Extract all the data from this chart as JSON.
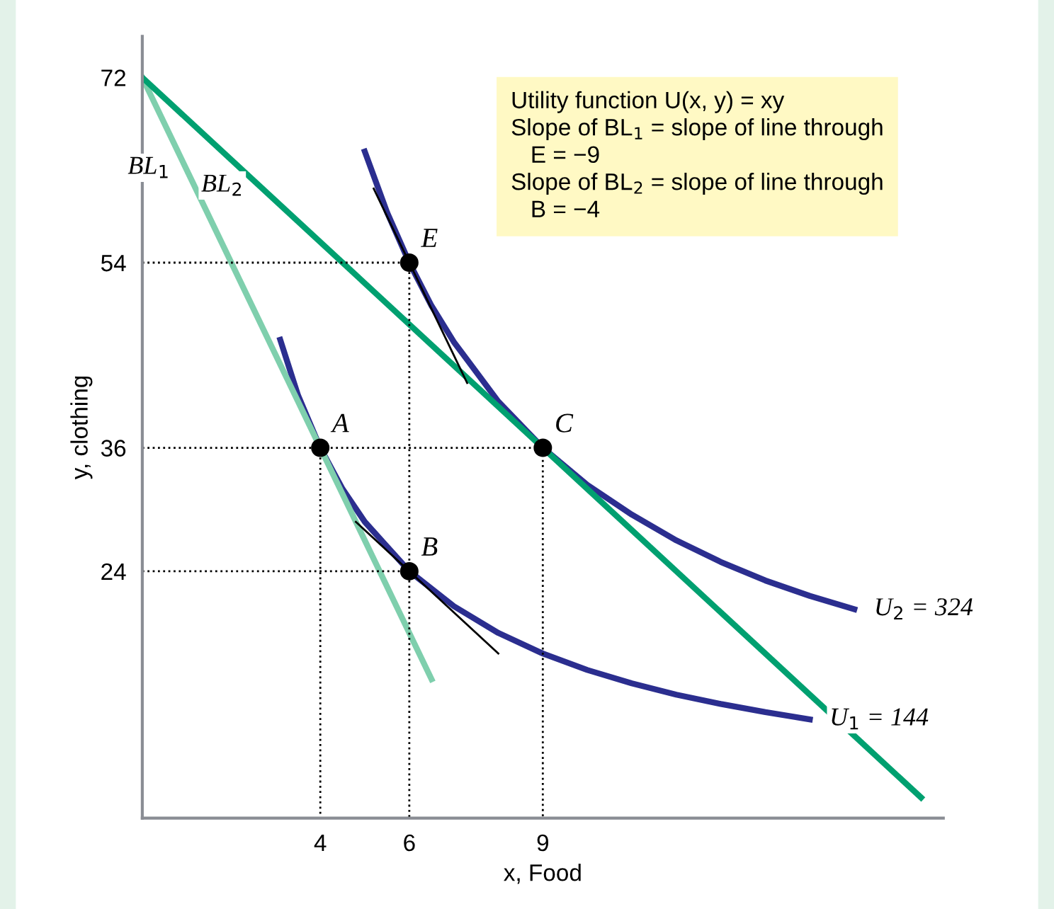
{
  "chart_data": {
    "type": "line",
    "xlabel": "x, Food",
    "ylabel": "y, clothing",
    "xlim": [
      0,
      18
    ],
    "ylim": [
      0,
      76
    ],
    "xticks": [
      4,
      6,
      9
    ],
    "yticks": [
      24,
      36,
      54,
      72
    ],
    "grid": false,
    "legend": false,
    "series": [
      {
        "name": "U$_{1}$ = 144",
        "color": "#2b2e8f",
        "x": [
          3.1,
          3.5,
          4,
          4.5,
          5,
          6,
          7,
          8,
          9,
          10,
          11,
          12,
          13,
          14,
          15
        ],
        "values": [
          46.5,
          41.1,
          36,
          32,
          28.8,
          24,
          20.6,
          18,
          16,
          14.4,
          13.1,
          12,
          11.1,
          10.3,
          9.6
        ]
      },
      {
        "name": "U$_{2}$ = 324",
        "color": "#2b2e8f",
        "x": [
          5,
          5.5,
          6,
          6.5,
          7,
          8,
          9,
          10,
          11,
          12,
          13,
          14,
          15,
          16
        ],
        "values": [
          64.8,
          58.9,
          54,
          49.8,
          46.3,
          40.5,
          36,
          32.4,
          29.5,
          27,
          24.9,
          23.1,
          21.6,
          20.3
        ]
      },
      {
        "type": "line",
        "name": "BL$_{1}$",
        "color": "#7fcfad",
        "x": [
          0,
          6.5
        ],
        "values": [
          72,
          13.5
        ]
      },
      {
        "type": "line",
        "name": "BL$_{2}$",
        "color": "#00a070",
        "x": [
          0,
          17.5
        ],
        "values": [
          72,
          2
        ]
      },
      {
        "type": "line",
        "color": "#000000",
        "x": [
          5.2,
          7.3
        ],
        "values": [
          61.2,
          42.3
        ]
      },
      {
        "type": "line",
        "color": "#000000",
        "x": [
          4.8,
          8
        ],
        "values": [
          28.8,
          16
        ]
      },
      {
        "type": "line",
        "color": "#000000",
        "line_style": "dotted",
        "x": [
          0,
          4,
          4
        ],
        "values": [
          36,
          36,
          0
        ]
      },
      {
        "type": "line",
        "color": "#000000",
        "line_style": "dotted",
        "x": [
          4,
          9,
          9
        ],
        "values": [
          36,
          36,
          0
        ]
      },
      {
        "type": "line",
        "color": "#000000",
        "line_style": "dotted",
        "x": [
          0,
          6,
          6
        ],
        "values": [
          24,
          24,
          0
        ]
      },
      {
        "type": "line",
        "color": "#000000",
        "line_style": "dotted",
        "x": [
          0,
          6,
          6
        ],
        "values": [
          54,
          54,
          24
        ]
      },
      {
        "type": "scatter",
        "color": "#000000",
        "marker": "circle",
        "x": [
          4,
          6,
          9,
          6
        ],
        "values": [
          36,
          24,
          36,
          54
        ]
      }
    ],
    "annotations": [
      {
        "text": "A",
        "x": 4,
        "y": 36
      },
      {
        "text": "B",
        "x": 6,
        "y": 24
      },
      {
        "text": "C",
        "x": 9,
        "y": 36
      },
      {
        "text": "E",
        "x": 6,
        "y": 54
      },
      "Utility function U(x, y) = xy\nSlope of BL$_{1}$ = slope of line through\n   E = −9\nSlope of BL$_{2}$ = slope of line through\n   B = −4"
    ]
  }
}
